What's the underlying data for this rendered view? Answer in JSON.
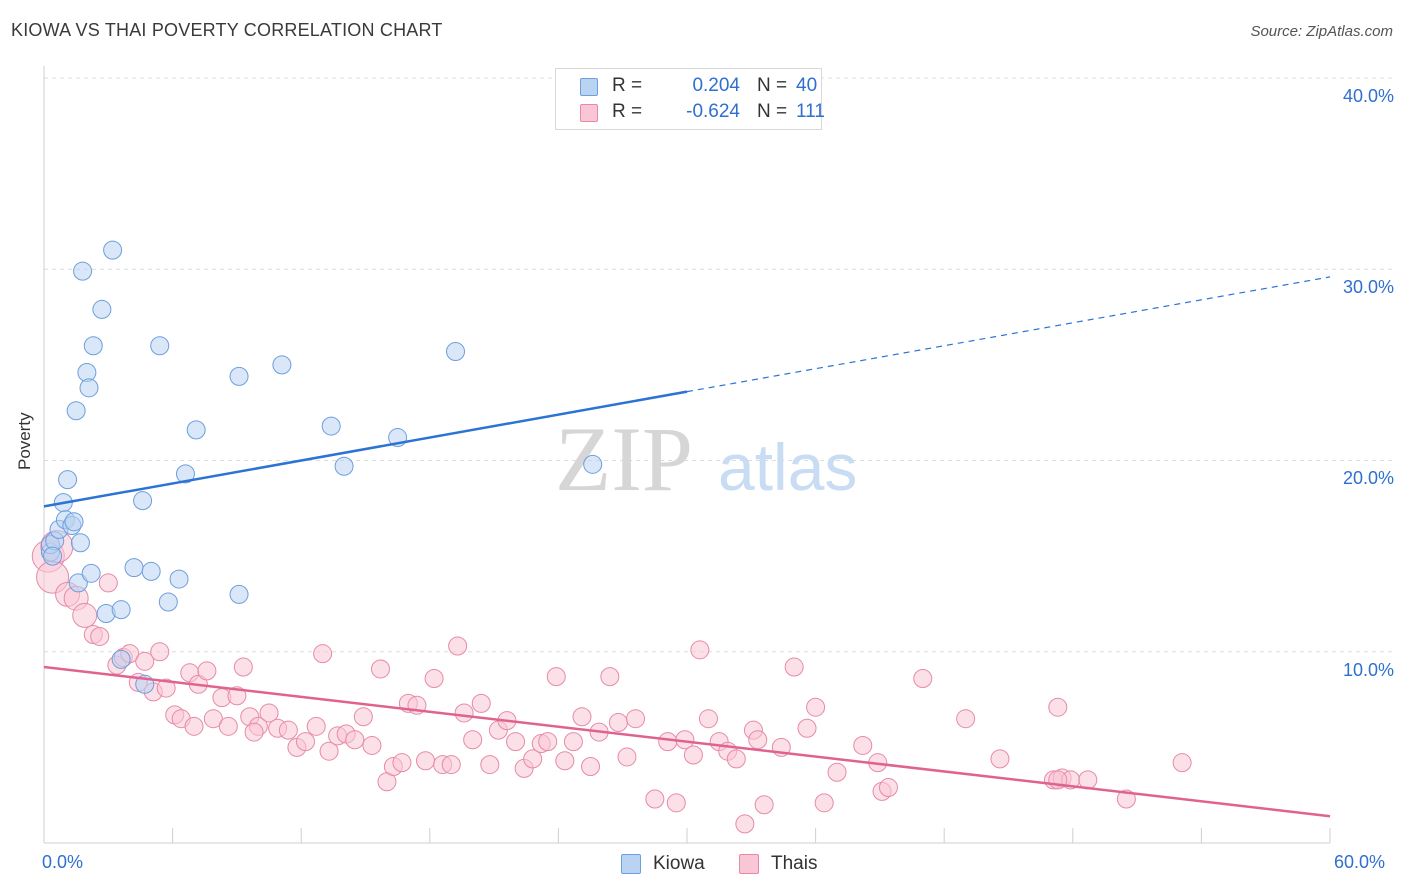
{
  "header": {
    "title": "KIOWA VS THAI POVERTY CORRELATION CHART",
    "source": "Source: ZipAtlas.com"
  },
  "legend": {
    "kiowa": {
      "r_label": "R =",
      "r_value": "0.204",
      "n_label": "N =",
      "n_value": "40"
    },
    "thais": {
      "r_label": "R =",
      "r_value": "-0.624",
      "n_label": "N =",
      "n_value": "111"
    }
  },
  "bottom_legend": {
    "kiowa": "Kiowa",
    "thais": "Thais"
  },
  "axis": {
    "y_label": "Poverty",
    "y_ticks": [
      "40.0%",
      "30.0%",
      "20.0%",
      "10.0%"
    ],
    "x_min_label": "0.0%",
    "x_max_label": "60.0%"
  },
  "watermark": {
    "zip": "ZIP",
    "atlas": "atlas"
  },
  "colors": {
    "kiowa_fill": "#b9d3f3",
    "kiowa_stroke": "#6e9fdc",
    "kiowa_line": "#2b73d4",
    "thais_fill": "#f9c6d6",
    "thais_stroke": "#e78aa8",
    "thais_line": "#e0628f",
    "tick_text": "#2f6fd0",
    "grid": "#dcdcdc"
  },
  "chart_data": {
    "type": "scatter",
    "xlabel": "",
    "ylabel": "Poverty",
    "xlim": [
      0,
      60
    ],
    "ylim": [
      0,
      40
    ],
    "y_ticks": [
      10,
      20,
      30,
      40
    ],
    "grid": true,
    "legend_position": "top-center",
    "series": [
      {
        "name": "Kiowa",
        "r": 0.204,
        "n": 40,
        "trend": {
          "x0": 0,
          "y0": 17.6,
          "x1": 30,
          "y1": 23.6,
          "x_dashed_end": 60,
          "y_dashed_end": 29.6
        },
        "points": [
          [
            0.3,
            15.2
          ],
          [
            0.3,
            15.6
          ],
          [
            0.5,
            15.8
          ],
          [
            0.7,
            16.4
          ],
          [
            0.9,
            17.8
          ],
          [
            1.0,
            16.9
          ],
          [
            1.1,
            19.0
          ],
          [
            1.3,
            16.6
          ],
          [
            1.4,
            16.8
          ],
          [
            1.5,
            22.6
          ],
          [
            1.6,
            13.6
          ],
          [
            1.7,
            15.7
          ],
          [
            1.8,
            29.9
          ],
          [
            2.0,
            24.6
          ],
          [
            2.1,
            23.8
          ],
          [
            2.2,
            14.1
          ],
          [
            2.3,
            26.0
          ],
          [
            2.7,
            27.9
          ],
          [
            2.9,
            12.0
          ],
          [
            3.2,
            31.0
          ],
          [
            3.6,
            12.2
          ],
          [
            3.6,
            9.6
          ],
          [
            4.2,
            14.4
          ],
          [
            4.6,
            17.9
          ],
          [
            4.7,
            8.3
          ],
          [
            5.0,
            14.2
          ],
          [
            5.4,
            26.0
          ],
          [
            5.8,
            12.6
          ],
          [
            6.3,
            13.8
          ],
          [
            6.6,
            19.3
          ],
          [
            7.1,
            21.6
          ],
          [
            9.1,
            13.0
          ],
          [
            9.1,
            24.4
          ],
          [
            11.1,
            25.0
          ],
          [
            13.4,
            21.8
          ],
          [
            14.0,
            19.7
          ],
          [
            16.5,
            21.2
          ],
          [
            19.2,
            25.7
          ],
          [
            25.6,
            19.8
          ],
          [
            0.4,
            15.0
          ]
        ]
      },
      {
        "name": "Thais",
        "r": -0.624,
        "n": 111,
        "trend": {
          "x0": 0,
          "y0": 9.2,
          "x1": 60,
          "y1": 1.4
        },
        "points": [
          [
            0.2,
            15.0
          ],
          [
            0.4,
            13.9
          ],
          [
            0.6,
            15.5
          ],
          [
            1.1,
            13.0
          ],
          [
            1.5,
            12.8
          ],
          [
            1.9,
            11.9
          ],
          [
            2.3,
            10.9
          ],
          [
            2.6,
            10.8
          ],
          [
            3.0,
            13.6
          ],
          [
            3.4,
            9.3
          ],
          [
            3.7,
            9.7
          ],
          [
            4.0,
            9.9
          ],
          [
            4.4,
            8.4
          ],
          [
            4.7,
            9.5
          ],
          [
            5.1,
            7.9
          ],
          [
            5.4,
            10.0
          ],
          [
            5.7,
            8.1
          ],
          [
            6.1,
            6.7
          ],
          [
            6.4,
            6.5
          ],
          [
            6.8,
            8.9
          ],
          [
            7.2,
            8.3
          ],
          [
            7.6,
            9.0
          ],
          [
            7.9,
            6.5
          ],
          [
            8.3,
            7.6
          ],
          [
            8.6,
            6.1
          ],
          [
            9.0,
            7.7
          ],
          [
            9.3,
            9.2
          ],
          [
            9.6,
            6.6
          ],
          [
            10.0,
            6.1
          ],
          [
            10.5,
            6.8
          ],
          [
            10.9,
            6.0
          ],
          [
            11.4,
            5.9
          ],
          [
            11.8,
            5.0
          ],
          [
            12.2,
            5.3
          ],
          [
            12.7,
            6.1
          ],
          [
            13.0,
            9.9
          ],
          [
            13.3,
            4.8
          ],
          [
            13.7,
            5.6
          ],
          [
            14.1,
            5.7
          ],
          [
            14.5,
            5.4
          ],
          [
            14.9,
            6.6
          ],
          [
            15.3,
            5.1
          ],
          [
            15.7,
            9.1
          ],
          [
            16.0,
            3.2
          ],
          [
            16.3,
            4.0
          ],
          [
            16.7,
            4.2
          ],
          [
            17.0,
            7.3
          ],
          [
            17.4,
            7.2
          ],
          [
            17.8,
            4.3
          ],
          [
            18.2,
            8.6
          ],
          [
            18.6,
            4.1
          ],
          [
            19.0,
            4.1
          ],
          [
            19.3,
            10.3
          ],
          [
            19.6,
            6.8
          ],
          [
            20.0,
            5.4
          ],
          [
            20.4,
            7.3
          ],
          [
            20.8,
            4.1
          ],
          [
            21.2,
            5.9
          ],
          [
            21.6,
            6.4
          ],
          [
            22.0,
            5.3
          ],
          [
            22.4,
            3.9
          ],
          [
            22.8,
            4.4
          ],
          [
            23.2,
            5.2
          ],
          [
            23.5,
            5.3
          ],
          [
            23.9,
            8.7
          ],
          [
            24.3,
            4.3
          ],
          [
            24.7,
            5.3
          ],
          [
            25.1,
            6.6
          ],
          [
            25.5,
            4.0
          ],
          [
            25.9,
            5.8
          ],
          [
            26.4,
            8.7
          ],
          [
            26.8,
            6.3
          ],
          [
            27.2,
            4.5
          ],
          [
            27.6,
            6.5
          ],
          [
            28.5,
            2.3
          ],
          [
            29.1,
            5.3
          ],
          [
            29.5,
            2.1
          ],
          [
            29.9,
            5.4
          ],
          [
            30.3,
            4.6
          ],
          [
            30.6,
            10.1
          ],
          [
            31.0,
            6.5
          ],
          [
            31.5,
            5.3
          ],
          [
            31.9,
            4.8
          ],
          [
            32.3,
            4.4
          ],
          [
            32.7,
            1.0
          ],
          [
            33.1,
            5.9
          ],
          [
            33.3,
            5.4
          ],
          [
            33.6,
            2.0
          ],
          [
            34.4,
            5.0
          ],
          [
            35.0,
            9.2
          ],
          [
            35.6,
            6.0
          ],
          [
            36.0,
            7.1
          ],
          [
            36.4,
            2.1
          ],
          [
            37.0,
            3.7
          ],
          [
            38.2,
            5.1
          ],
          [
            38.9,
            4.2
          ],
          [
            39.1,
            2.7
          ],
          [
            39.4,
            2.9
          ],
          [
            41.0,
            8.6
          ],
          [
            43.0,
            6.5
          ],
          [
            44.6,
            4.4
          ],
          [
            47.1,
            3.3
          ],
          [
            47.5,
            3.4
          ],
          [
            47.9,
            3.3
          ],
          [
            48.7,
            3.3
          ],
          [
            47.3,
            3.3
          ],
          [
            50.5,
            2.3
          ],
          [
            53.1,
            4.2
          ],
          [
            47.3,
            7.1
          ],
          [
            9.8,
            5.8
          ],
          [
            7.0,
            6.1
          ]
        ]
      }
    ]
  }
}
